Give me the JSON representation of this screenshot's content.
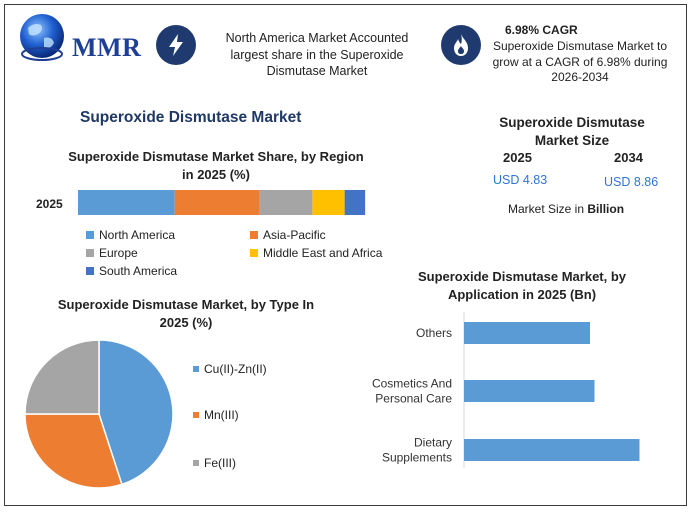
{
  "brand": {
    "name": "MMR"
  },
  "header": {
    "info1_text": "North America Market Accounted largest share in the Superoxide Dismutase Market",
    "info2_title": "6.98% CAGR",
    "info2_text": "Superoxide Dismutase Market to grow at a CAGR of 6.98% during 2026-2034"
  },
  "icons": {
    "logo": "globe-icon",
    "info1": "lightning-bolt-icon",
    "info2": "flame-icon"
  },
  "colors": {
    "accent": "#1f3864",
    "blue": "#5b9bd5",
    "orange": "#ed7d31",
    "gray": "#a5a5a5",
    "yellow": "#ffc000",
    "dark_blue": "#4472c4",
    "value_blue": "#2e75d6"
  },
  "main_title": "Superoxide Dismutase Market",
  "market_size": {
    "title": "Superoxide Dismutase Market Size",
    "years": [
      "2025",
      "2034"
    ],
    "values": [
      "USD 4.83",
      "USD 8.86"
    ],
    "unit_prefix": "Market Size in",
    "unit_bold": "Billion"
  },
  "chart_data": [
    {
      "type": "bar",
      "orientation": "horizontal-stacked",
      "title": "Superoxide Dismutase Market Share, by Region in 2025 (%)",
      "categories": [
        "2025"
      ],
      "series": [
        {
          "name": "North America",
          "values": [
            33
          ],
          "color": "#5b9bd5"
        },
        {
          "name": "Asia-Pacific",
          "values": [
            29
          ],
          "color": "#ed7d31"
        },
        {
          "name": "Europe",
          "values": [
            18
          ],
          "color": "#a5a5a5"
        },
        {
          "name": "Middle East and Africa",
          "values": [
            11
          ],
          "color": "#ffc000"
        },
        {
          "name": "South America",
          "values": [
            7
          ],
          "color": "#4472c4"
        }
      ],
      "legend": "bottom"
    },
    {
      "type": "pie",
      "title": "Superoxide Dismutase Market, by Type In 2025 (%)",
      "labels": [
        "Cu(II)-Zn(II)",
        "Mn(III)",
        "Fe(III)"
      ],
      "values": [
        45,
        30,
        25
      ],
      "colors": [
        "#5b9bd5",
        "#ed7d31",
        "#a5a5a5"
      ],
      "legend": "right"
    },
    {
      "type": "bar",
      "orientation": "horizontal",
      "title": "Superoxide Dismutase Market, by Application in 2025 (Bn)",
      "categories": [
        "Others",
        "Cosmetics And Personal Care",
        "Dietary Supplements"
      ],
      "category_lines": [
        [
          "Others"
        ],
        [
          "Cosmetics And",
          "Personal Care"
        ],
        [
          "Dietary",
          "Supplements"
        ]
      ],
      "values": [
        1.4,
        1.45,
        1.95
      ],
      "color": "#5b9bd5"
    }
  ]
}
